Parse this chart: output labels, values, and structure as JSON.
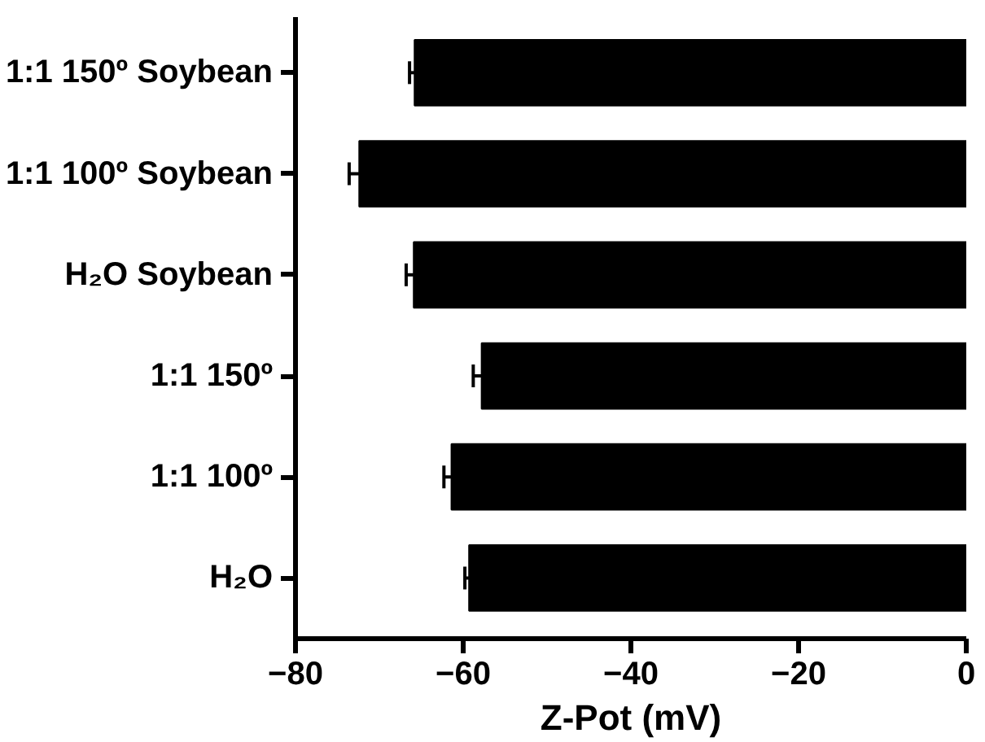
{
  "chart_data": {
    "type": "bar",
    "orientation": "horizontal",
    "xlabel": "Z-Pot (mV)",
    "categories": [
      "1:1 150º Soybean",
      "1:1 100º Soybean",
      "H₂O Soybean",
      "1:1 150º",
      "1:1 100º",
      "H₂O"
    ],
    "values": [
      -65.8,
      -72.4,
      -65.9,
      -57.8,
      -61.4,
      -59.3
    ],
    "errors": [
      0.6,
      1.2,
      0.9,
      1.0,
      0.9,
      0.5
    ],
    "color": "#000000",
    "xlim": [
      -80,
      0
    ],
    "xticks": [
      -80,
      -60,
      -40,
      -20,
      0
    ],
    "grid": false
  }
}
